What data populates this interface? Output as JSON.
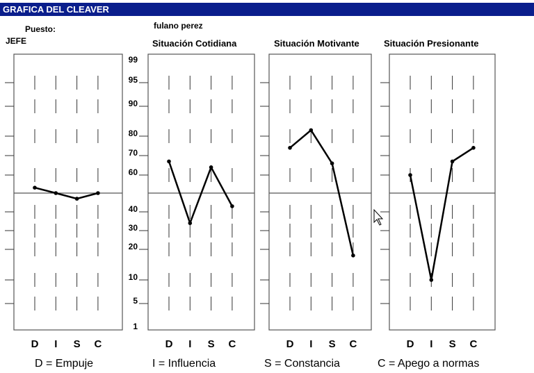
{
  "window": {
    "title": "GRAFICA DEL CLEAVER"
  },
  "header": {
    "puesto_label": "Puesto:",
    "puesto_value": "JEFE",
    "name": "fulano perez"
  },
  "legend": [
    "D = Empuje",
    "I = Influencia",
    "S = Constancia",
    "C = Apego a normas"
  ],
  "colors": {
    "titlebar": "#0a1e8c",
    "line": "#000000"
  },
  "chart_data": [
    {
      "type": "line",
      "title": "",
      "categories": [
        "D",
        "I",
        "S",
        "C"
      ],
      "values": [
        53,
        50,
        47,
        50
      ],
      "midline": 50
    },
    {
      "type": "line",
      "title": "Situación Cotidiana",
      "categories": [
        "D",
        "I",
        "S",
        "C"
      ],
      "values": [
        67,
        34,
        64,
        43
      ],
      "midline": 50,
      "y_ticks": [
        "99",
        "95",
        "90",
        "80",
        "70",
        "60",
        "40",
        "30",
        "20",
        "10",
        "5",
        "1"
      ]
    },
    {
      "type": "line",
      "title": "Situación Motivante",
      "categories": [
        "D",
        "I",
        "S",
        "C"
      ],
      "values": [
        74,
        82,
        66,
        18
      ],
      "midline": 50
    },
    {
      "type": "line",
      "title": "Situación Presionante",
      "categories": [
        "D",
        "I",
        "S",
        "C"
      ],
      "values": [
        60,
        10,
        67,
        74
      ],
      "midline": 50
    }
  ]
}
